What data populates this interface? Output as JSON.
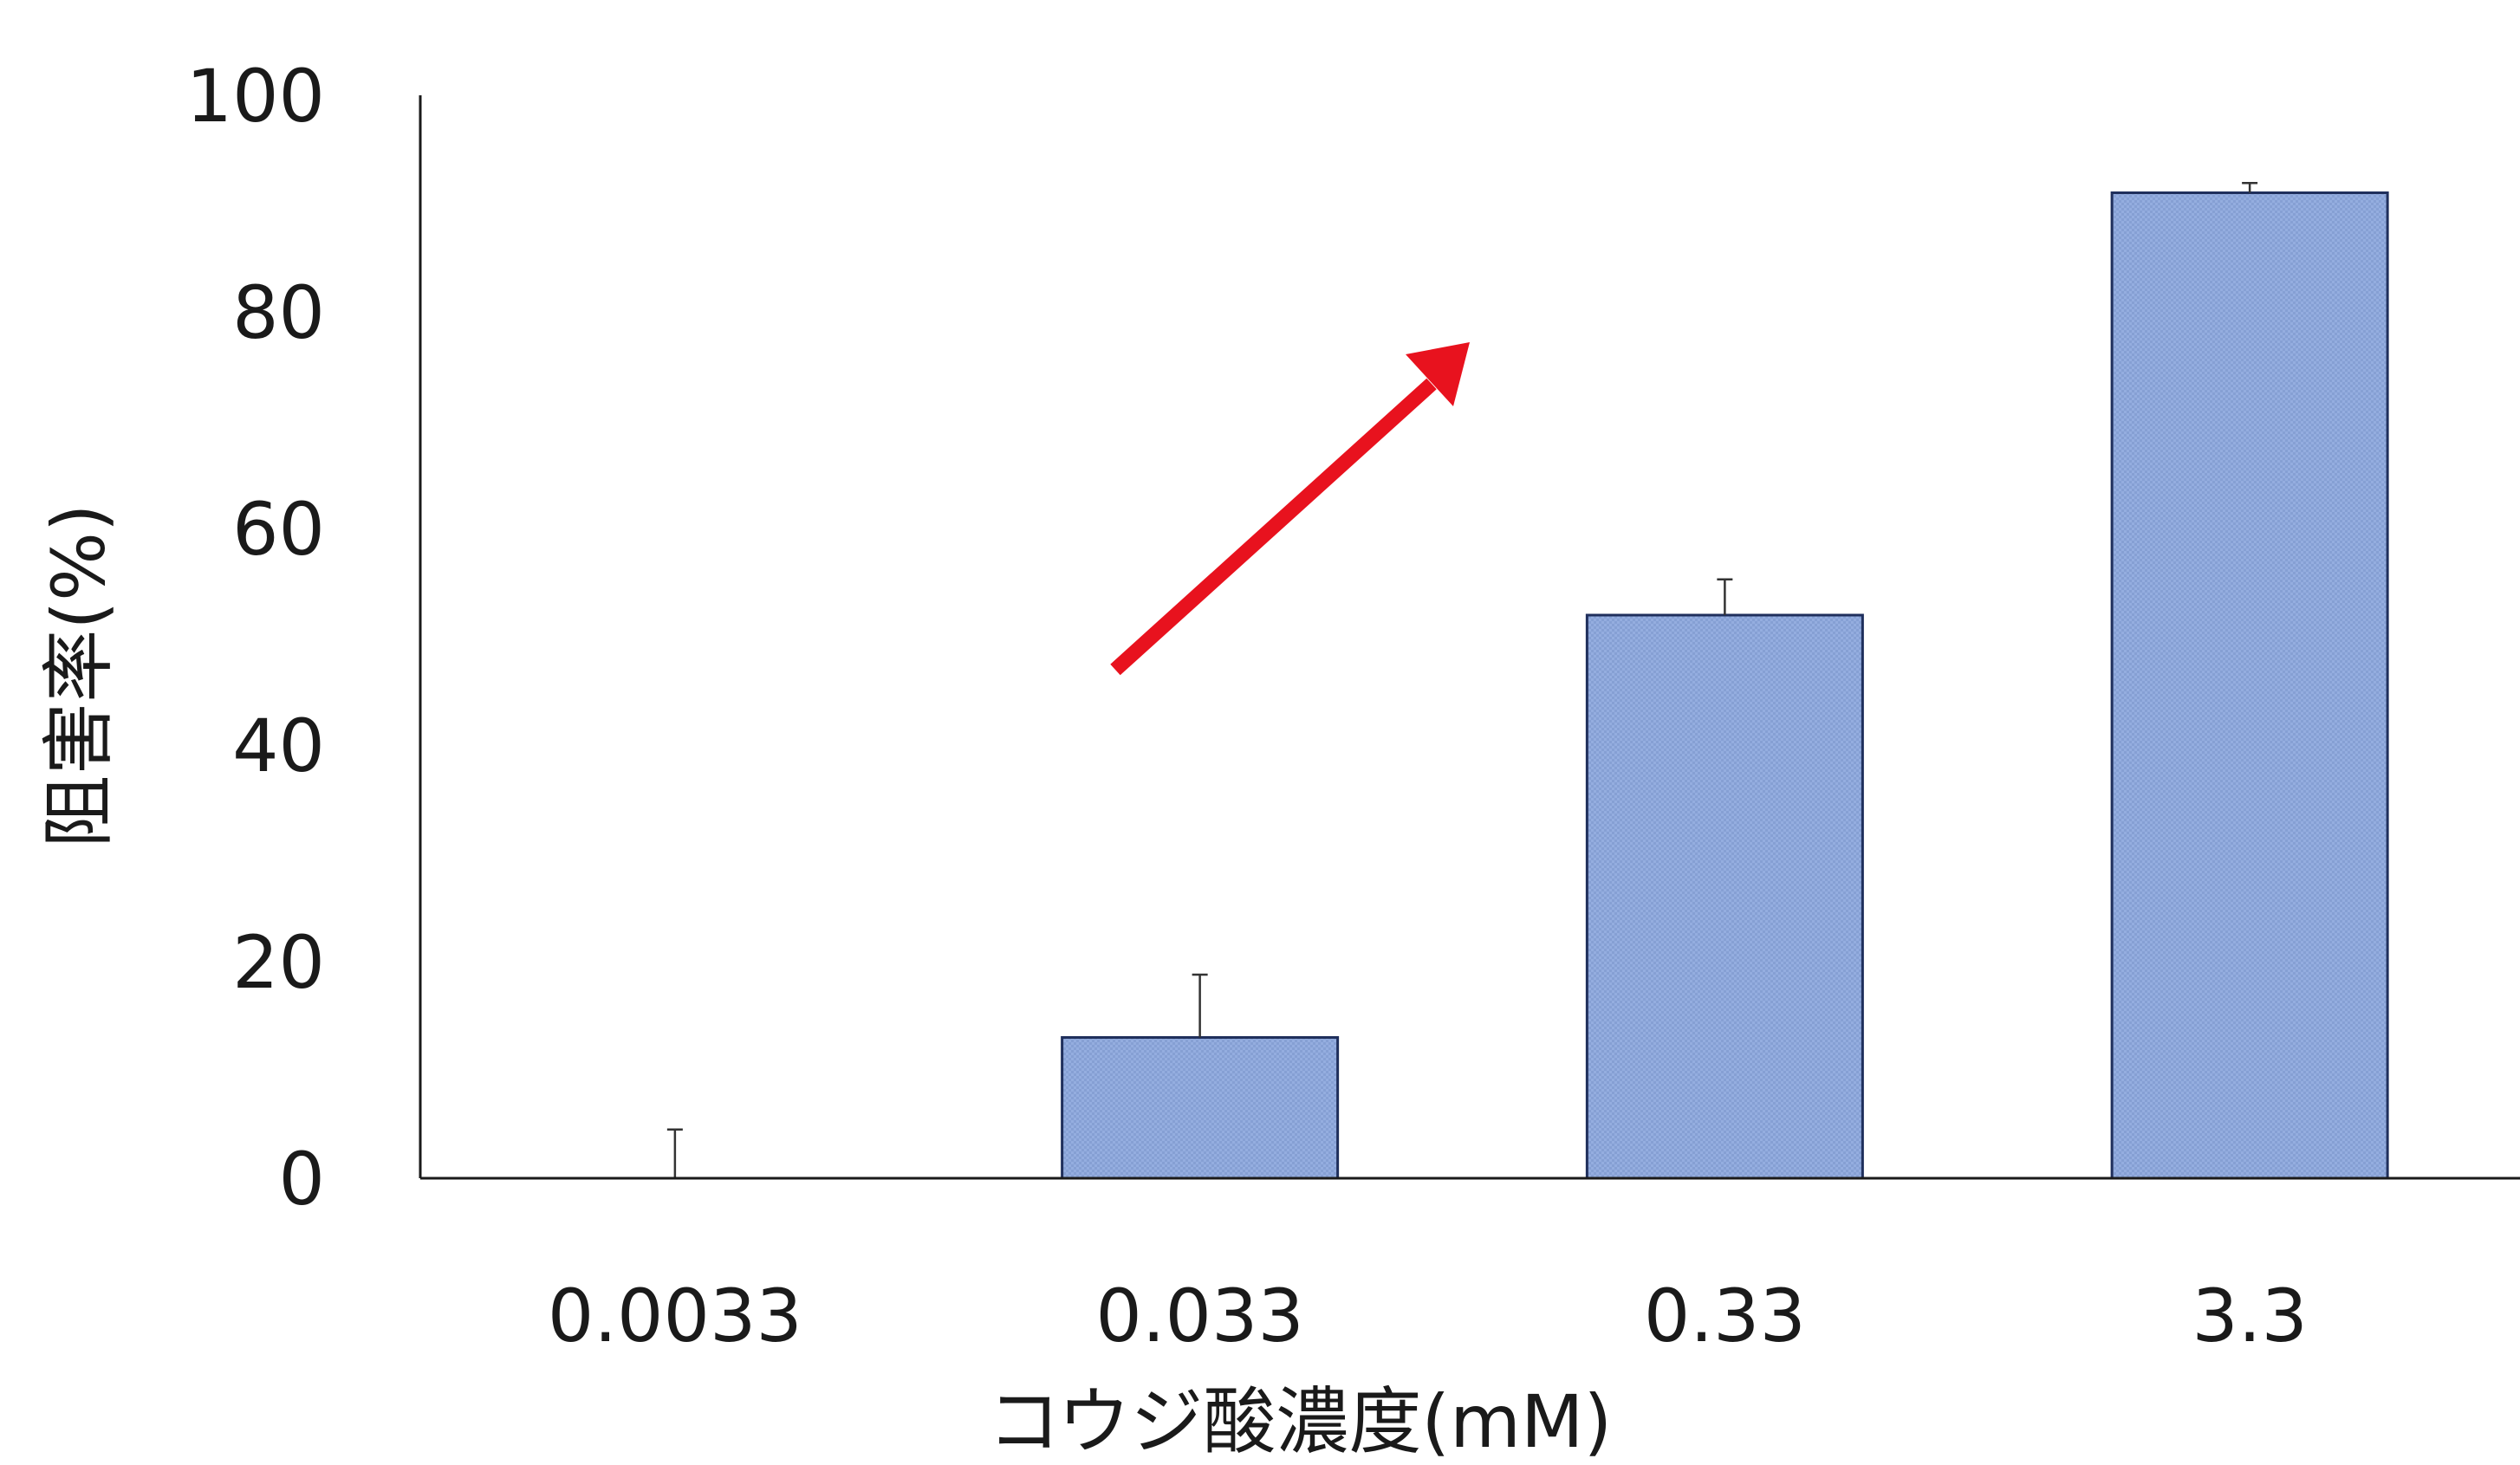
{
  "chart_data": {
    "type": "bar",
    "xlabel": "コウジ酸濃度(mM)",
    "ylabel": "阻害率(%)",
    "ylim": [
      0,
      100
    ],
    "yticks": [
      0,
      20,
      40,
      60,
      80,
      100
    ],
    "categories": [
      "0.0033",
      "0.033",
      "0.33",
      "3.3"
    ],
    "values": [
      0,
      13,
      52,
      91
    ],
    "error_upper": [
      4.5,
      5.8,
      3.3,
      0.9
    ],
    "grid": false,
    "legend": "none",
    "bar_color": "#8fa9dc",
    "bar_edge_color": "#1f2f5c",
    "annotation": {
      "type": "arrow",
      "color": "#e8121e",
      "meaning": "increasing trend"
    }
  }
}
